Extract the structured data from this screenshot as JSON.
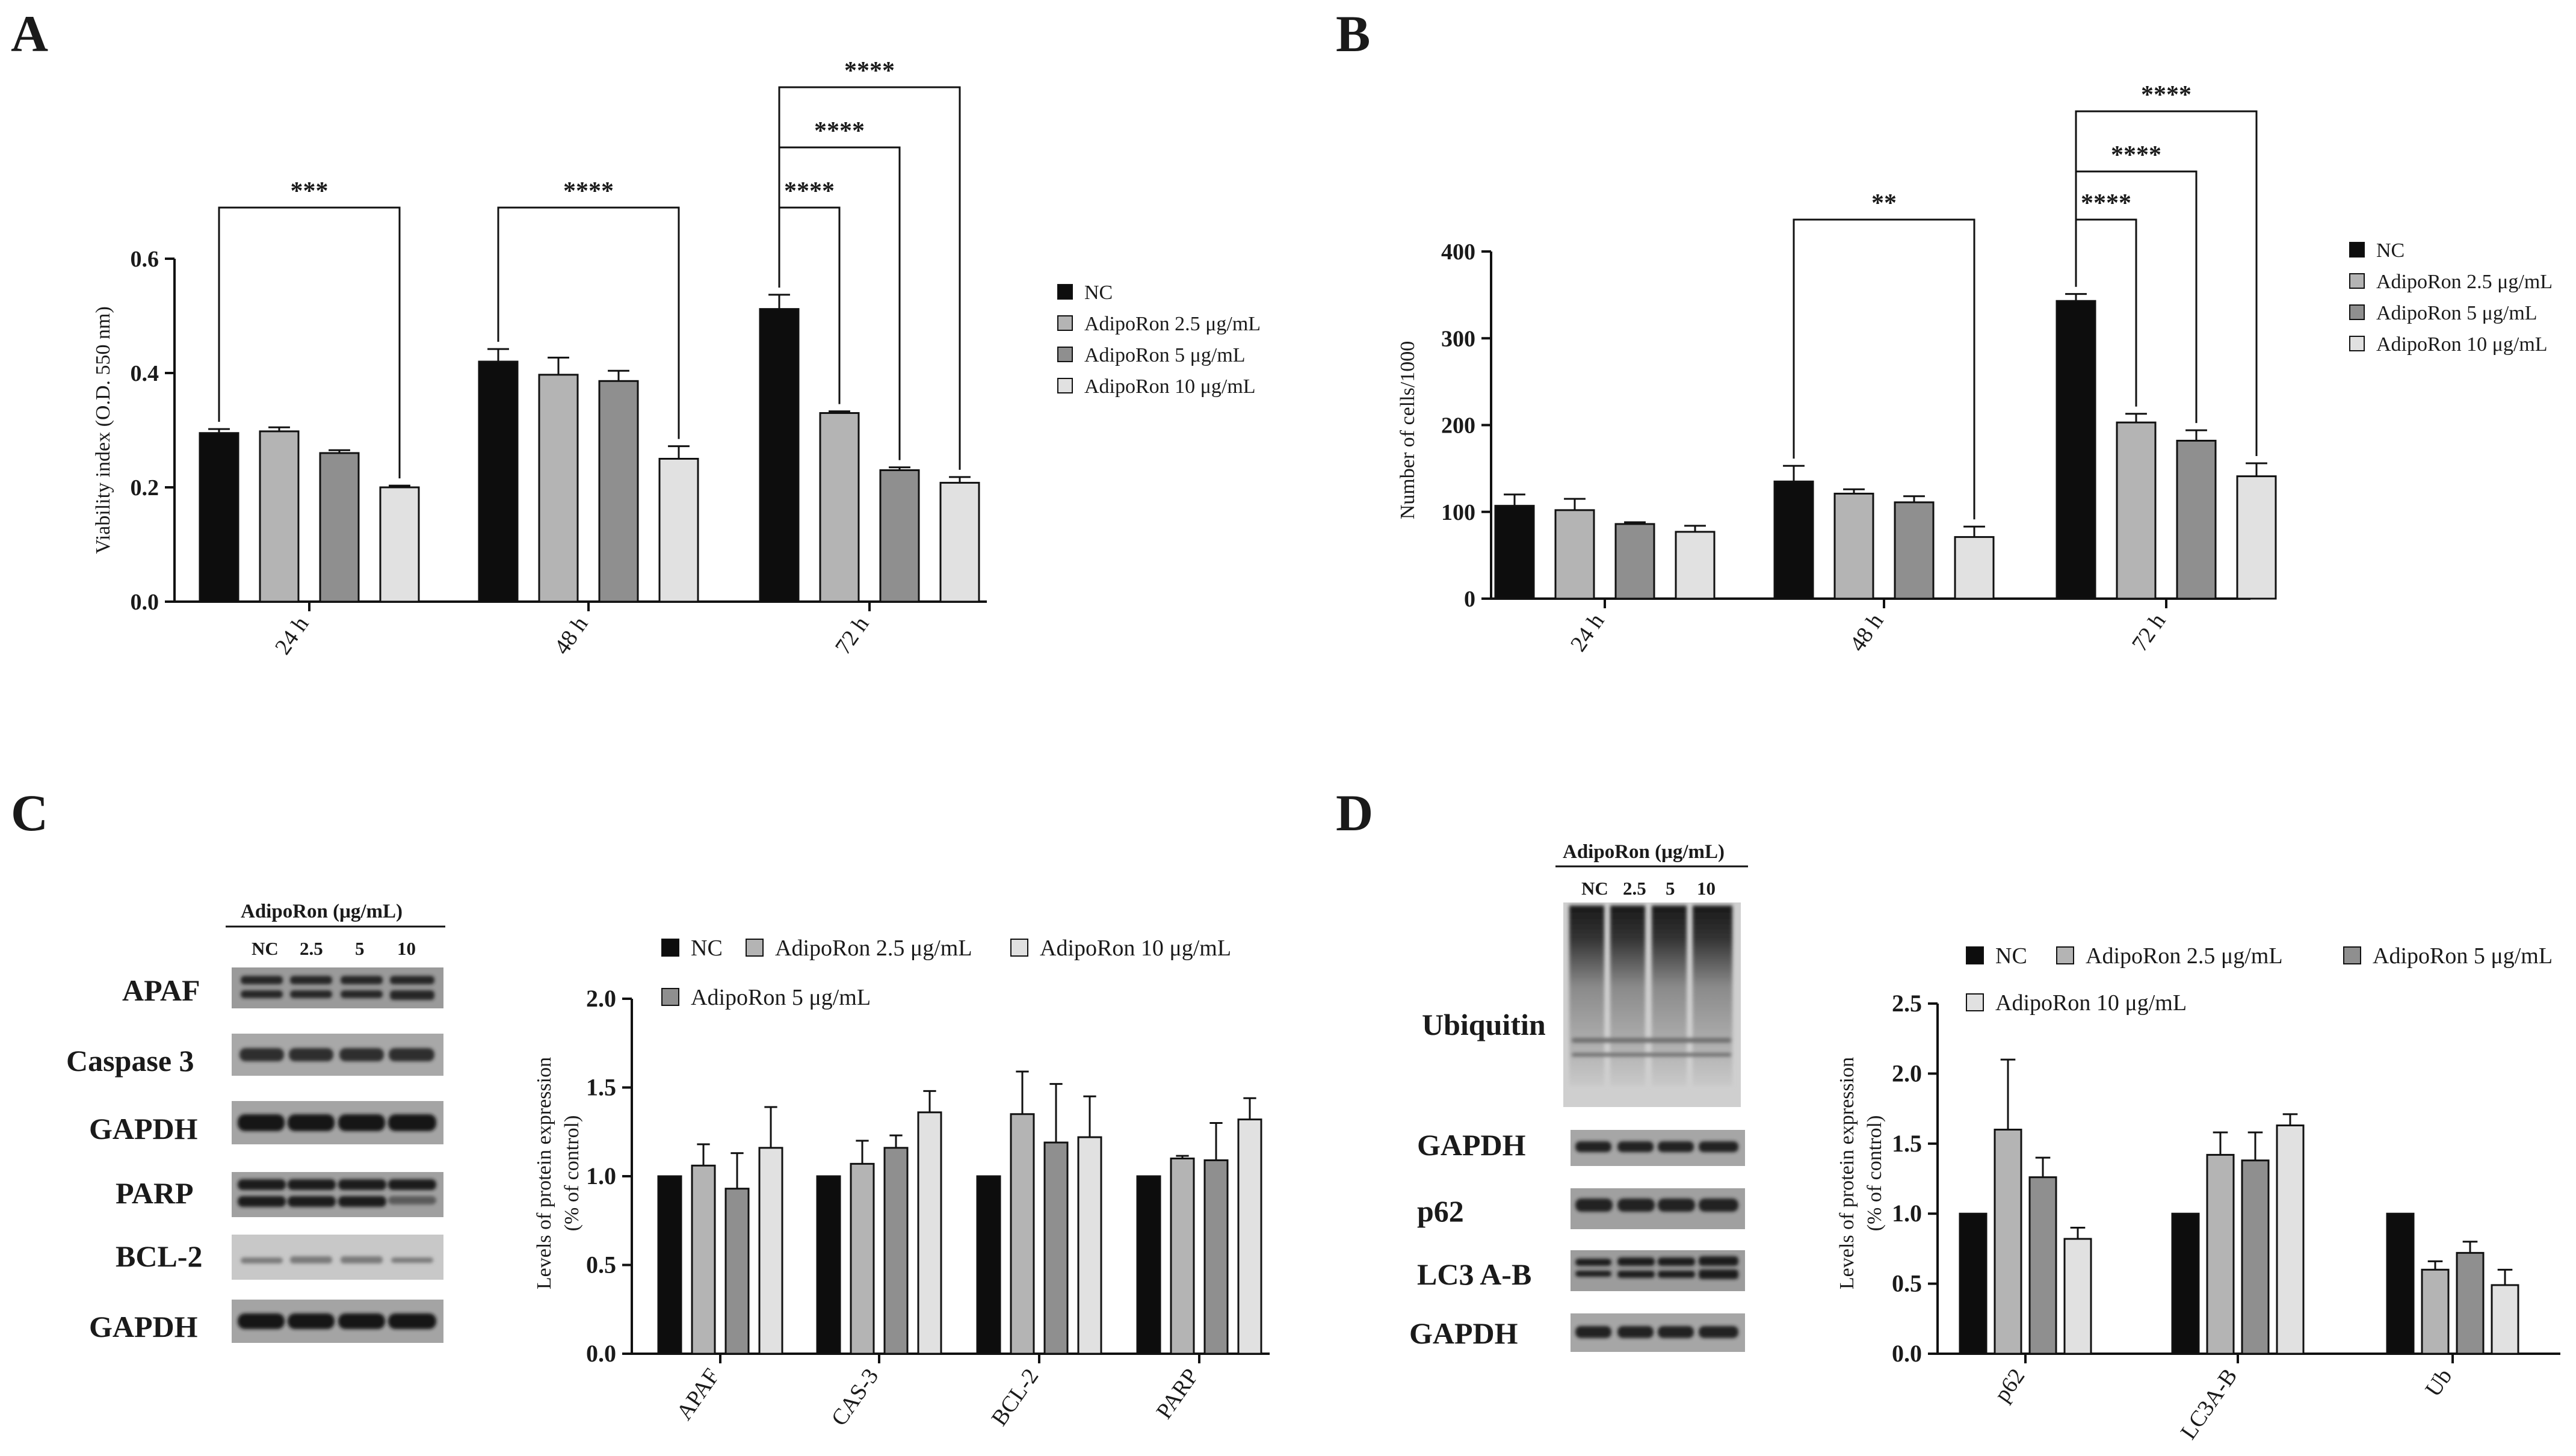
{
  "panel_labels": {
    "A": "A",
    "B": "B",
    "C": "C",
    "D": "D"
  },
  "colors": {
    "NC": "#0d0d0d",
    "AdipoRon 2.5": "#b4b4b4",
    "AdipoRon 5": "#8f8f8f",
    "AdipoRon 10": "#e1e1e1"
  },
  "chart_data": [
    {
      "id": "A",
      "type": "bar",
      "title": "",
      "xlabel": "",
      "ylabel": "Viability index (O.D. 550 nm)",
      "ylim": [
        0,
        0.6
      ],
      "yticks": [
        "0.0",
        "0.2",
        "0.4",
        "0.6"
      ],
      "categories": [
        "24 h",
        "48 h",
        "72 h"
      ],
      "legend_position": "right",
      "series": [
        {
          "name": "NC",
          "values": [
            0.295,
            0.42,
            0.512
          ],
          "errors": [
            0.007,
            0.022,
            0.025
          ]
        },
        {
          "name": "AdipoRon 2.5 μg/mL",
          "values": [
            0.298,
            0.397,
            0.33
          ],
          "errors": [
            0.007,
            0.03,
            0.003
          ]
        },
        {
          "name": "AdipoRon 5 μg/mL",
          "values": [
            0.26,
            0.386,
            0.23
          ],
          "errors": [
            0.005,
            0.018,
            0.005
          ]
        },
        {
          "name": "AdipoRon 10 μg/mL",
          "values": [
            0.2,
            0.25,
            0.208
          ],
          "errors": [
            0.003,
            0.022,
            0.01
          ]
        }
      ],
      "significance": [
        {
          "group": 0,
          "from": 0,
          "to": 3,
          "label": "***"
        },
        {
          "group": 1,
          "from": 0,
          "to": 3,
          "label": "****"
        },
        {
          "group": 2,
          "from": 0,
          "to": 1,
          "label": "****"
        },
        {
          "group": 2,
          "from": 0,
          "to": 2,
          "label": "****"
        },
        {
          "group": 2,
          "from": 0,
          "to": 3,
          "label": "****"
        }
      ]
    },
    {
      "id": "B",
      "type": "bar",
      "title": "",
      "xlabel": "",
      "ylabel": "Number of cells/1000",
      "ylim": [
        0,
        400
      ],
      "yticks": [
        "0",
        "100",
        "200",
        "300",
        "400"
      ],
      "categories": [
        "24 h",
        "48 h",
        "72 h"
      ],
      "legend_position": "right",
      "series": [
        {
          "name": "NC",
          "values": [
            107,
            135,
            343
          ],
          "errors": [
            13,
            18,
            8
          ]
        },
        {
          "name": "AdipoRon 2.5 μg/mL",
          "values": [
            102,
            121,
            203
          ],
          "errors": [
            13,
            5,
            10
          ]
        },
        {
          "name": "AdipoRon 5 μg/mL",
          "values": [
            86,
            111,
            182
          ],
          "errors": [
            2,
            7,
            12
          ]
        },
        {
          "name": "AdipoRon 10 μg/mL",
          "values": [
            77,
            71,
            141
          ],
          "errors": [
            7,
            12,
            15
          ]
        }
      ],
      "significance": [
        {
          "group": 1,
          "from": 0,
          "to": 3,
          "label": "**"
        },
        {
          "group": 2,
          "from": 0,
          "to": 1,
          "label": "****"
        },
        {
          "group": 2,
          "from": 0,
          "to": 2,
          "label": "****"
        },
        {
          "group": 2,
          "from": 0,
          "to": 3,
          "label": "****"
        }
      ]
    },
    {
      "id": "C",
      "type": "bar",
      "title": "",
      "xlabel": "",
      "ylabel": [
        "Levels of protein expression",
        "(% of control)"
      ],
      "ylim": [
        0,
        2.0
      ],
      "yticks": [
        "0.0",
        "0.5",
        "1.0",
        "1.5",
        "2.0"
      ],
      "categories": [
        "APAF",
        "CAS-3",
        "BCL-2",
        "PARP"
      ],
      "legend_position": "top",
      "legend_rows": [
        [
          "NC",
          "AdipoRon 2.5 μg/mL",
          "AdipoRon 10 μg/mL"
        ],
        [
          "AdipoRon 5 μg/mL"
        ]
      ],
      "series": [
        {
          "name": "NC",
          "values": [
            1.0,
            1.0,
            1.0,
            1.0
          ],
          "errors": [
            0,
            0,
            0,
            0
          ]
        },
        {
          "name": "AdipoRon 2.5 μg/mL",
          "values": [
            1.06,
            1.07,
            1.35,
            1.1
          ],
          "errors": [
            0.12,
            0.13,
            0.24,
            0.015
          ]
        },
        {
          "name": "AdipoRon 5 μg/mL",
          "values": [
            0.93,
            1.16,
            1.19,
            1.09
          ],
          "errors": [
            0.2,
            0.07,
            0.33,
            0.21
          ]
        },
        {
          "name": "AdipoRon 10 μg/mL",
          "values": [
            1.16,
            1.36,
            1.22,
            1.32
          ],
          "errors": [
            0.23,
            0.12,
            0.23,
            0.12
          ]
        }
      ]
    },
    {
      "id": "D",
      "type": "bar",
      "title": "",
      "xlabel": "",
      "ylabel": [
        "Levels of protein expression",
        "(% of control)"
      ],
      "ylim": [
        0,
        2.5
      ],
      "yticks": [
        "0.0",
        "0.5",
        "1.0",
        "1.5",
        "2.0",
        "2.5"
      ],
      "categories": [
        "p62",
        "LC3A-B",
        "Ub"
      ],
      "legend_position": "top",
      "legend_rows": [
        [
          "NC",
          "AdipoRon 2.5 μg/mL",
          "AdipoRon 5 μg/mL"
        ],
        [
          "AdipoRon 10 μg/mL"
        ]
      ],
      "series": [
        {
          "name": "NC",
          "values": [
            1.0,
            1.0,
            1.0
          ],
          "errors": [
            0,
            0,
            0
          ]
        },
        {
          "name": "AdipoRon 2.5 μg/mL",
          "values": [
            1.6,
            1.42,
            0.6
          ],
          "errors": [
            0.5,
            0.16,
            0.06
          ]
        },
        {
          "name": "AdipoRon 5 μg/mL",
          "values": [
            1.26,
            1.38,
            0.72
          ],
          "errors": [
            0.14,
            0.2,
            0.08
          ]
        },
        {
          "name": "AdipoRon 10 μg/mL",
          "values": [
            0.82,
            1.63,
            0.49
          ],
          "errors": [
            0.08,
            0.08,
            0.11
          ]
        }
      ]
    }
  ],
  "blots": {
    "C": {
      "header": "AdipoRon (μg/mL)",
      "lanes": [
        "NC",
        "2.5",
        "5",
        "10"
      ],
      "rows": [
        "APAF",
        "Caspase 3",
        "GAPDH",
        "PARP",
        "BCL-2",
        "GAPDH"
      ]
    },
    "D": {
      "header": "AdipoRon (μg/mL)",
      "lanes": [
        "NC",
        "2.5",
        "5",
        "10"
      ],
      "rows": [
        "Ubiquitin",
        "GAPDH",
        "p62",
        "LC3 A-B",
        "GAPDH"
      ]
    }
  }
}
